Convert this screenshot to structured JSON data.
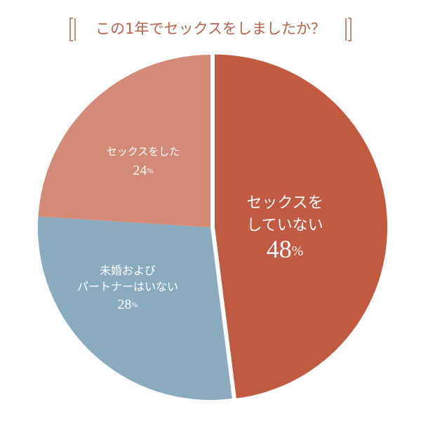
{
  "chart_data": {
    "type": "pie",
    "title": "この1年でセックスをしましたか？",
    "categories": [
      "セックスを\nしていない",
      "未婚および\nパートナーはいない",
      "セックスをした"
    ],
    "values": [
      48,
      28,
      24
    ],
    "value_labels": [
      "48%",
      "28%",
      "24%"
    ],
    "colors": [
      "#c05b41",
      "#8aaabe",
      "#d58a78"
    ]
  }
}
